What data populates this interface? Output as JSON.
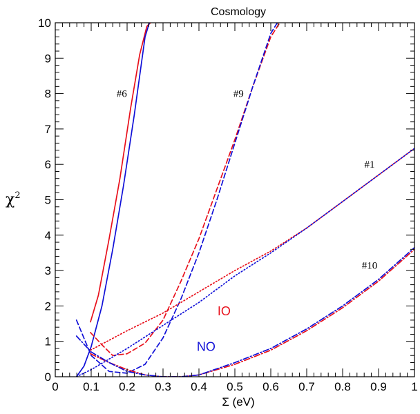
{
  "chart_data": {
    "type": "line",
    "title": "Cosmology",
    "xlabel": "Σ (eV)",
    "ylabel": "χ",
    "ylabel_superscript": "2",
    "xlim": [
      0,
      1
    ],
    "ylim": [
      0,
      10
    ],
    "grid": false,
    "x_ticks": [
      "0",
      "0.1",
      "0.2",
      "0.3",
      "0.4",
      "0.5",
      "0.6",
      "0.7",
      "0.8",
      "0.9",
      "1"
    ],
    "y_ticks": [
      "0",
      "1",
      "2",
      "3",
      "4",
      "5",
      "6",
      "7",
      "8",
      "9",
      "10"
    ],
    "colors": {
      "IO": "#e8101b",
      "NO": "#1010d8"
    },
    "annotations": [
      {
        "text": "#6",
        "x": 0.185,
        "y": 8.0
      },
      {
        "text": "#9",
        "x": 0.51,
        "y": 8.0
      },
      {
        "text": "#1",
        "x": 0.875,
        "y": 6.0
      },
      {
        "text": "#10",
        "x": 0.875,
        "y": 3.15
      }
    ],
    "ordering_labels": [
      {
        "text": "IO",
        "x": 0.47,
        "y": 1.85,
        "color": "#e8101b"
      },
      {
        "text": "NO",
        "x": 0.42,
        "y": 0.85,
        "color": "#1010d8"
      }
    ],
    "series": [
      {
        "label": "#6",
        "ordering": "IO",
        "style": "solid",
        "x": [
          0.098,
          0.12,
          0.15,
          0.18,
          0.21,
          0.235,
          0.255,
          0.265
        ],
        "y": [
          1.55,
          2.3,
          3.9,
          5.6,
          7.6,
          9.1,
          9.9,
          10.0
        ]
      },
      {
        "label": "#6",
        "ordering": "NO",
        "style": "solid",
        "x": [
          0.059,
          0.08,
          0.1,
          0.13,
          0.16,
          0.19,
          0.22,
          0.25,
          0.262
        ],
        "y": [
          0.0,
          0.3,
          0.85,
          2.0,
          3.6,
          5.4,
          7.4,
          9.6,
          10.0
        ]
      },
      {
        "label": "#9",
        "ordering": "IO",
        "style": "dashed",
        "x": [
          0.098,
          0.13,
          0.16,
          0.2,
          0.25,
          0.3,
          0.35,
          0.4,
          0.45,
          0.5,
          0.55,
          0.6,
          0.625
        ],
        "y": [
          1.25,
          0.9,
          0.6,
          0.65,
          0.95,
          1.6,
          2.7,
          3.9,
          5.3,
          6.7,
          8.2,
          9.6,
          10.0
        ]
      },
      {
        "label": "#9",
        "ordering": "NO",
        "style": "dashed",
        "x": [
          0.059,
          0.1,
          0.15,
          0.2,
          0.25,
          0.3,
          0.35,
          0.4,
          0.45,
          0.5,
          0.55,
          0.6,
          0.618
        ],
        "y": [
          1.6,
          0.6,
          0.15,
          0.1,
          0.35,
          1.1,
          2.2,
          3.5,
          5.0,
          6.6,
          8.2,
          9.7,
          10.0
        ]
      },
      {
        "label": "#1",
        "ordering": "IO",
        "style": "dotted",
        "x": [
          0.098,
          0.2,
          0.3,
          0.4,
          0.5,
          0.6,
          0.7,
          0.8,
          0.9,
          1.0
        ],
        "y": [
          0.75,
          1.3,
          1.8,
          2.4,
          3.0,
          3.55,
          4.2,
          4.95,
          5.7,
          6.45
        ]
      },
      {
        "label": "#1",
        "ordering": "NO",
        "style": "dotted",
        "x": [
          0.059,
          0.1,
          0.2,
          0.3,
          0.4,
          0.5,
          0.6,
          0.7,
          0.8,
          0.9,
          1.0
        ],
        "y": [
          0.0,
          0.2,
          0.8,
          1.45,
          2.1,
          2.85,
          3.5,
          4.2,
          4.95,
          5.7,
          6.45
        ]
      },
      {
        "label": "#10",
        "ordering": "IO",
        "style": "dashdot",
        "x": [
          0.098,
          0.15,
          0.2,
          0.25,
          0.3,
          0.35,
          0.4,
          0.5,
          0.6,
          0.7,
          0.8,
          0.9,
          1.0
        ],
        "y": [
          0.65,
          0.4,
          0.2,
          0.05,
          0.0,
          0.0,
          0.05,
          0.35,
          0.75,
          1.3,
          1.95,
          2.7,
          3.6
        ]
      },
      {
        "label": "#10",
        "ordering": "NO",
        "style": "dashdot",
        "x": [
          0.059,
          0.1,
          0.15,
          0.2,
          0.25,
          0.3,
          0.35,
          0.4,
          0.5,
          0.6,
          0.7,
          0.8,
          0.9,
          1.0
        ],
        "y": [
          1.15,
          0.7,
          0.4,
          0.15,
          0.05,
          0.0,
          0.0,
          0.05,
          0.4,
          0.8,
          1.35,
          2.0,
          2.75,
          3.65
        ]
      }
    ]
  }
}
